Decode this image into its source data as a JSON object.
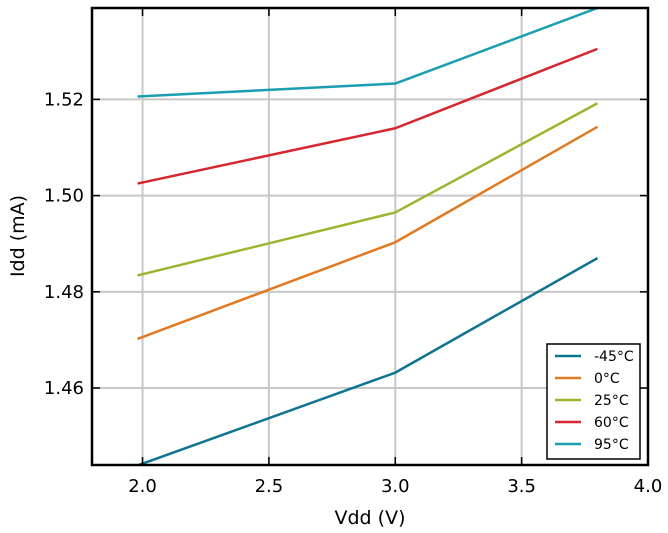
{
  "chart_data": {
    "type": "line",
    "xlabel": "Vdd (V)",
    "ylabel": "Idd (mA)",
    "xlim": [
      1.8,
      4.0
    ],
    "ylim": [
      1.444,
      1.539
    ],
    "xticks": [
      2.0,
      2.5,
      3.0,
      3.5,
      4.0
    ],
    "xtick_labels": [
      "2.0",
      "2.5",
      "3.0",
      "3.5",
      "4.0"
    ],
    "yticks": [
      1.46,
      1.48,
      1.5,
      1.52
    ],
    "ytick_labels": [
      "1.46",
      "1.48",
      "1.50",
      "1.52"
    ],
    "grid": true,
    "legend_position": "bottom-right",
    "x": [
      1.98,
      3.0,
      3.8
    ],
    "series": [
      {
        "name": "-45°C",
        "color": "#0e7490",
        "values": [
          1.4439,
          1.4632,
          1.487
        ]
      },
      {
        "name": "0°C",
        "color": "#e07b24",
        "values": [
          1.4702,
          1.4903,
          1.5143
        ]
      },
      {
        "name": "25°C",
        "color": "#9ab630",
        "values": [
          1.4834,
          1.4965,
          1.5192
        ]
      },
      {
        "name": "60°C",
        "color": "#d62630",
        "values": [
          1.5025,
          1.514,
          1.5305
        ]
      },
      {
        "name": "95°C",
        "color": "#1a9eb0",
        "values": [
          1.5206,
          1.5233,
          1.539
        ]
      }
    ]
  }
}
